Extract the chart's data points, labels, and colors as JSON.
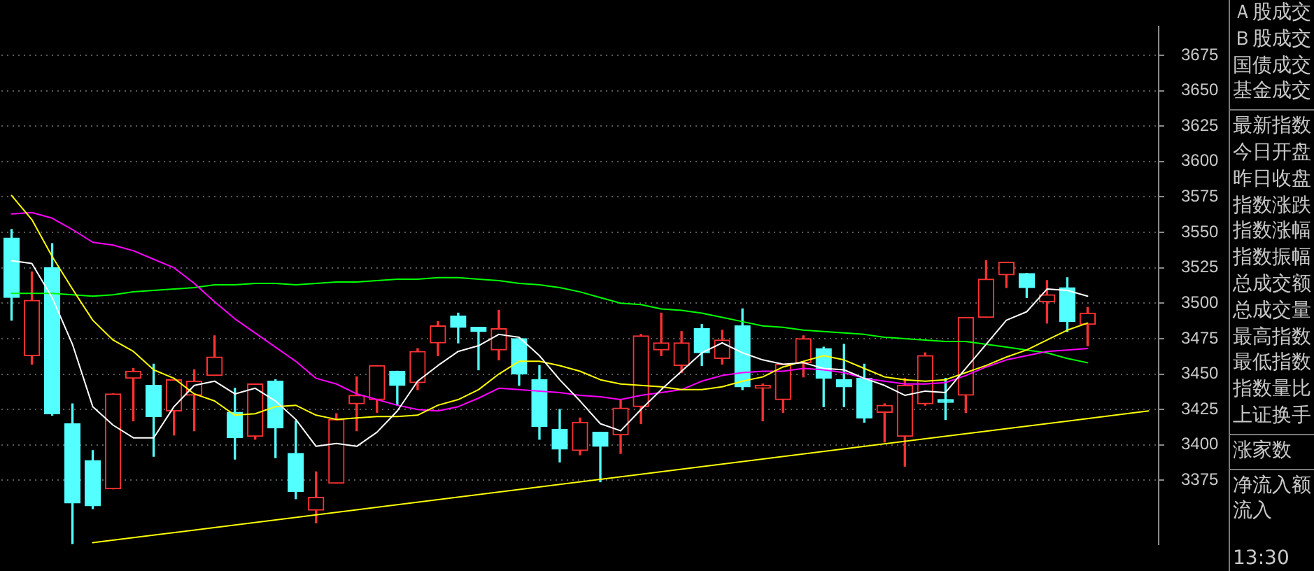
{
  "chart_data": [
    {
      "type": "candlestick",
      "categories": [
        null,
        null,
        null,
        null,
        null,
        null,
        null,
        null,
        null,
        null,
        null,
        null,
        null,
        null,
        null,
        null,
        null,
        null,
        null,
        null,
        null,
        null,
        null,
        null,
        null,
        null,
        null,
        null,
        null,
        null,
        null,
        null,
        null,
        null,
        null,
        null,
        null,
        null,
        null,
        null,
        null,
        null,
        null,
        null,
        null,
        null,
        null,
        null,
        null,
        null,
        null,
        null,
        null,
        null,
        null,
        null,
        null
      ],
      "ohlc": [
        [
          3546,
          3552,
          3488,
          3504
        ],
        [
          3463,
          3522,
          3457,
          3502
        ],
        [
          3525,
          3542,
          3421,
          3422
        ],
        [
          3415,
          3429,
          3330,
          3359
        ],
        [
          3389,
          3396,
          3355,
          3357
        ],
        [
          3369,
          3436,
          3369,
          3436
        ],
        [
          3447,
          3454,
          3417,
          3452
        ],
        [
          3442,
          3457,
          3392,
          3420
        ],
        [
          3424,
          3446,
          3407,
          3446
        ],
        [
          3435,
          3453,
          3410,
          3445
        ],
        [
          3449,
          3477,
          3449,
          3462
        ],
        [
          3423,
          3440,
          3390,
          3405
        ],
        [
          3406,
          3443,
          3404,
          3443
        ],
        [
          3445,
          3446,
          3391,
          3412
        ],
        [
          3394,
          3417,
          3362,
          3367
        ],
        [
          3354,
          3381,
          3345,
          3363
        ],
        [
          3373,
          3422,
          3373,
          3418
        ],
        [
          3429,
          3448,
          3410,
          3435
        ],
        [
          3432,
          3456,
          3423,
          3456
        ],
        [
          3452,
          3452,
          3428,
          3442
        ],
        [
          3444,
          3468,
          3439,
          3466
        ],
        [
          3472,
          3487,
          3463,
          3484
        ],
        [
          3491,
          3493,
          3472,
          3483
        ],
        [
          3483,
          3483,
          3453,
          3480
        ],
        [
          3467,
          3495,
          3460,
          3482
        ],
        [
          3475,
          3475,
          3442,
          3450
        ],
        [
          3446,
          3456,
          3404,
          3413
        ],
        [
          3411,
          3425,
          3388,
          3397
        ],
        [
          3396,
          3419,
          3393,
          3416
        ],
        [
          3409,
          3409,
          3374,
          3399
        ],
        [
          3407,
          3432,
          3394,
          3426
        ],
        [
          3427,
          3478,
          3415,
          3477
        ],
        [
          3467,
          3493,
          3463,
          3472
        ],
        [
          3456,
          3480,
          3451,
          3472
        ],
        [
          3482,
          3485,
          3456,
          3465
        ],
        [
          3461,
          3481,
          3457,
          3474
        ],
        [
          3484,
          3496,
          3439,
          3441
        ],
        [
          3440,
          3443,
          3417,
          3442
        ],
        [
          3432,
          3457,
          3423,
          3457
        ],
        [
          3458,
          3477,
          3448,
          3475
        ],
        [
          3468,
          3469,
          3427,
          3447
        ],
        [
          3446,
          3471,
          3427,
          3441
        ],
        [
          3447,
          3457,
          3416,
          3419
        ],
        [
          3423,
          3429,
          3402,
          3428
        ],
        [
          3406,
          3447,
          3385,
          3442
        ],
        [
          3429,
          3465,
          3428,
          3463
        ],
        [
          3432,
          3447,
          3418,
          3430
        ],
        [
          3435,
          3490,
          3423,
          3490
        ],
        [
          3490,
          3530,
          3490,
          3517
        ],
        [
          3520,
          3529,
          3511,
          3529
        ],
        [
          3521,
          3521,
          3504,
          3511
        ],
        [
          3501,
          3516,
          3486,
          3506
        ],
        [
          3511,
          3518,
          3480,
          3487
        ],
        [
          3485,
          3497,
          3470,
          3493
        ],
        null,
        null,
        null
      ],
      "colors": [
        "#54ffff",
        "#ff3232",
        "#54ffff",
        "#54ffff",
        "#54ffff",
        "#ff3232",
        "#ff3232",
        "#54ffff",
        "#ff3232",
        "#ff3232",
        "#ff3232",
        "#54ffff",
        "#ff3232",
        "#54ffff",
        "#54ffff",
        "#ff3232",
        "#ff3232",
        "#ff3232",
        "#ff3232",
        "#54ffff",
        "#ff3232",
        "#ff3232",
        "#54ffff",
        "#54ffff",
        "#ff3232",
        "#54ffff",
        "#54ffff",
        "#54ffff",
        "#ff3232",
        "#54ffff",
        "#ff3232",
        "#ff3232",
        "#ff3232",
        "#ff3232",
        "#54ffff",
        "#ff3232",
        "#54ffff",
        "#ff3232",
        "#ff3232",
        "#ff3232",
        "#54ffff",
        "#54ffff",
        "#54ffff",
        "#ff3232",
        "#ff3232",
        "#ff3232",
        "#54ffff",
        "#ff3232",
        "#ff3232",
        "#ff3232",
        "#54ffff",
        "#ff3232",
        "#54ffff",
        "#ff3232",
        null,
        null,
        null
      ],
      "series": [
        {
          "type": "line",
          "color": "#ffffff",
          "values": [
            3530,
            3528,
            3504,
            3471,
            3427,
            3414,
            3405,
            3405,
            3427,
            3442,
            3445,
            3436,
            3440,
            3431,
            3418,
            3399,
            3401,
            3399,
            3409,
            3424,
            3445,
            3456,
            3466,
            3470,
            3478,
            3476,
            3463,
            3446,
            3431,
            3415,
            3410,
            3425,
            3439,
            3452,
            3465,
            3472,
            3465,
            3460,
            3457,
            3458,
            3454,
            3453,
            3447,
            3442,
            3435,
            3438,
            3437,
            3454,
            3471,
            3488,
            3494,
            3510,
            3509,
            3505,
            null,
            null,
            null
          ]
        },
        {
          "type": "line",
          "color": "#ffff00",
          "values": [
            3576,
            3559,
            3533,
            3510,
            3488,
            3474,
            3466,
            3453,
            3447,
            3436,
            3431,
            3421,
            3422,
            3427,
            3428,
            3421,
            3418,
            3419,
            3420,
            3420,
            3421,
            3428,
            3432,
            3439,
            3450,
            3459,
            3459,
            3456,
            3452,
            3446,
            3443,
            3442,
            3441,
            3439,
            3439,
            3441,
            3445,
            3448,
            3455,
            3459,
            3463,
            3460,
            3454,
            3448,
            3446,
            3445,
            3446,
            3451,
            3456,
            3462,
            3467,
            3474,
            3481,
            3486,
            null,
            null,
            null
          ]
        },
        {
          "type": "line",
          "color": "#ff00ff",
          "values": [
            3563,
            3564,
            3560,
            3552,
            3543,
            3541,
            3537,
            3531,
            3525,
            3514,
            3501,
            3489,
            3479,
            3469,
            3459,
            3447,
            3443,
            3436,
            3432,
            3428,
            3425,
            3424,
            3427,
            3433,
            3440,
            3439,
            3438,
            3437,
            3435,
            3434,
            3432,
            3435,
            3437,
            3439,
            3445,
            3449,
            3451,
            3452,
            3452,
            3454,
            3453,
            3451,
            3447,
            3445,
            3443,
            3443,
            3444,
            3449,
            3455,
            3460,
            3463,
            3466,
            3467,
            3468,
            null,
            null,
            null
          ]
        },
        {
          "type": "line",
          "color": "#00ff00",
          "values": [
            3507,
            3507,
            3507,
            3506,
            3505,
            3506,
            3508,
            3509,
            3510,
            3511,
            3513,
            3513,
            3514,
            3514,
            3513,
            3514,
            3515,
            3515,
            3516,
            3517,
            3517,
            3518,
            3518,
            3517,
            3516,
            3514,
            3513,
            3511,
            3508,
            3504,
            3500,
            3499,
            3496,
            3495,
            3493,
            3490,
            3487,
            3484,
            3483,
            3481,
            3480,
            3479,
            3478,
            3476,
            3475,
            3474,
            3473,
            3473,
            3471,
            3469,
            3467,
            3465,
            3461,
            3458,
            null,
            null,
            null
          ]
        },
        {
          "type": "line",
          "color": "#ffff00",
          "values": [
            null,
            null,
            null,
            null,
            3331,
            null,
            null,
            null,
            null,
            null,
            null,
            null,
            null,
            null,
            null,
            null,
            null,
            null,
            null,
            null,
            null,
            null,
            null,
            null,
            null,
            null,
            null,
            null,
            null,
            null,
            null,
            null,
            null,
            null,
            null,
            null,
            null,
            null,
            null,
            null,
            null,
            null,
            null,
            null,
            null,
            null,
            null,
            null,
            null,
            null,
            null,
            null,
            null,
            null,
            null,
            null,
            3424
          ]
        }
      ],
      "ylim": [
        3330,
        3695
      ],
      "yticks": [
        3375,
        3400,
        3425,
        3450,
        3475,
        3500,
        3525,
        3550,
        3575,
        3600,
        3625,
        3650,
        3675
      ],
      "grid": "y",
      "tick_labels": "y"
    },
    {
      "type": "other",
      "annotations": [
        "Ａ股成交",
        "Ｂ股成交",
        "国债成交",
        "基金成交",
        "最新指数",
        "今日开盘",
        "昨日收盘",
        "指数涨跌",
        "指数涨幅",
        "指数振幅",
        "总成交额",
        "总成交量",
        "最高指数",
        "最低指数",
        "指数量比",
        "上证换手",
        "涨家数",
        "净流入额",
        "流入",
        "13:30"
      ]
    }
  ]
}
